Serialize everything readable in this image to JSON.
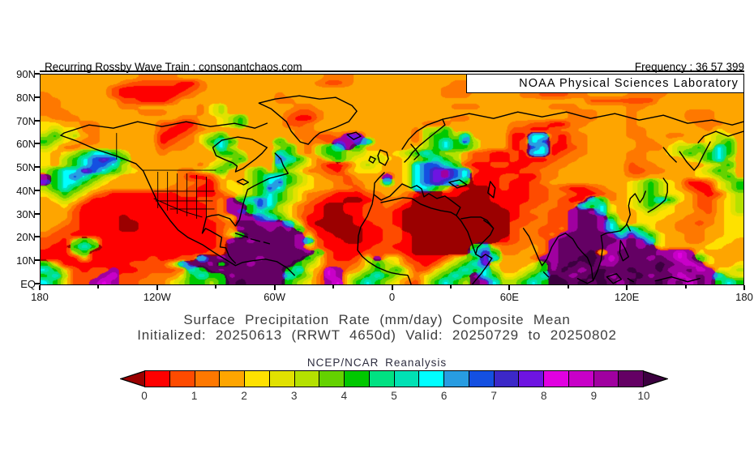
{
  "header": {
    "left_text": "Recurring Rossby Wave Train : consonantchaos.com",
    "right_text": "Frequency : 36 57 399"
  },
  "map_overlay": {
    "credit": "NOAA Physical Sciences Laboratory"
  },
  "captions": {
    "title": "Surface Precipitation Rate (mm/day) Composite Mean",
    "subtitle": "Initialized: 20250613 (RRWT 4650d) Valid: 20250729 to 20250802",
    "source": "NCEP/NCAR Reanalysis"
  },
  "chart_data": {
    "type": "heatmap",
    "title": "Surface Precipitation Rate (mm/day) Composite Mean",
    "subtitle": "Initialized: 20250613 (RRWT 4650d) Valid: 20250729 to 20250802",
    "source": "NCEP/NCAR Reanalysis",
    "units": "mm/day",
    "lon_range_deg": [
      -180,
      180
    ],
    "lat_range_deg": [
      0,
      90
    ],
    "x_ticks": [
      "180",
      "120W",
      "60W",
      "0",
      "60E",
      "120E",
      "180"
    ],
    "y_ticks": [
      "90N",
      "80N",
      "70N",
      "60N",
      "50N",
      "40N",
      "30N",
      "20N",
      "10N",
      "EQ"
    ],
    "colorbar": {
      "min": 0,
      "max": 10,
      "interval": 0.5,
      "labels": [
        "0",
        "1",
        "2",
        "3",
        "4",
        "5",
        "6",
        "7",
        "8",
        "9",
        "10"
      ],
      "palette": [
        "#9b0000",
        "#fe0000",
        "#fe4b00",
        "#fe7800",
        "#fea500",
        "#fee100",
        "#e1e100",
        "#b4e100",
        "#64d200",
        "#00c800",
        "#00e182",
        "#00e1b4",
        "#00feff",
        "#289ce1",
        "#1450e1",
        "#3c28c8",
        "#6e14e1",
        "#e100e1",
        "#c800c8",
        "#a000a0",
        "#640064",
        "#3c0040"
      ]
    },
    "grid_encoding": "72 cols x 36 rows; col = 5 deg lon from 180W, row = 2.5 deg lat from 90N down to EQ; each char indexes colorbar.palette: 0-9 then a-l",
    "grid_rows": [
      "444444444433334444444444444443334444444444444444444443334444444444444444",
      "444444443222221134444444444432234444444444334444444333344444444444444444",
      "444444421111111234444444444444444444444443333444443322334444433334444444",
      "344444421111112344444444344444444444444443334444433222334444333344444444",
      "334444442211124444444444334444444444444444444444444444442222222444444444",
      "334444443344444435744444443344444444444444333444444433344444334444444444",
      "333444444433344435744444432234444444444444444444444444333444344444333444",
      "433344444444443344579444421134444444444444334444444444333444344444333444",
      "554433444444221144579444422344444444444333444444332211334444344444433344",
      "575533444444211234444444443344444444443779444444221123344444334444443544",
      "7957434444441123579444444433223gg4444437997c444411cc21334444334433445754",
      "975433444444123359c94444944332gjgc4444379c9e744412ce21334444433445445794",
      "753344444444233447c74444794379cj944444579c99744412ec11234444433357795c94",
      "54579cc97444344444997444c94379977554579c9774221121cc12334444334457979c94",
      "5479cege9444444444579444ec95379755754579c9742211211123344444334444579c74",
      "5479ceec7444444435794444c9753112575445ceec921122112233444444233444445794",
      "79ccjec9754444335794479497533214555445cegjec2111122334444444223344457974",
      "j9cec975444444311254479cc9754332444g45cegjec1112211334444444334444455794",
      "g9cc9754444444332145479ce9754432344c45cegec91112112344444444579754112579",
      "79c97544444443321145579ec7554433244444cc97110012112232112344579754211579",
      "57975321111111221124579c975332111234431001100011112233211234579755421257",
      "4575311111111111223j9cec97532110012332000000001111223211c934579c95422457",
      "4453111111111111123jj9ec7532100112232100000000011223322c9c54579754422457",
      "4442111111111111123jg9c9753210011222100000000000123322jkjc54457554432457",
      "44421111011111111235jjec953110001222100000000000122322jkkj94455544333455",
      "44321111001111111123kkjjjc5100001122100000000000223322jkkjc5455443323455",
      "43221111001111111124jkkjkj9210000112200000000000233223jkkjc9c95443334455",
      "322111111111111111259kkkkkj51100011221000000000023323jkkkkjcjc9544334455",
      "2217971111111111112jkjkkkkjc211001122100000000012333jkkkkkkjkjc544334554",
      "2119c91111111111112kkkkkkkj521111122110000009c433343jkkkkkjjkjk544445544",
      "1117911111111111122kkkkkkkkj9211122221000000cg933443jkkkl5jkkkkjjhj54444",
      "1111511111121122ckjkkkjkkkk9521127j5521112579gc4443jjkkllkhkkkjkjhj95444",
      "95111111122225ckkj9kkjkkkk975222359753212579cg544459jklkljjkkkklkjhj5445",
      "c952122j1122223c9kjkkkkkk9c54hj347979522579c9c744579jlkjklkklkkljjkhj557",
      "9c7222jh22233359c99jkkkkkc973hj579c9753579c9jc95579clkjklljkkljkkhjkjc75",
      "c9522jhj22333579979klkkkk9753jh59c9753259c97kjc779c9llklklkjlkkljkhkj9c9"
    ]
  }
}
